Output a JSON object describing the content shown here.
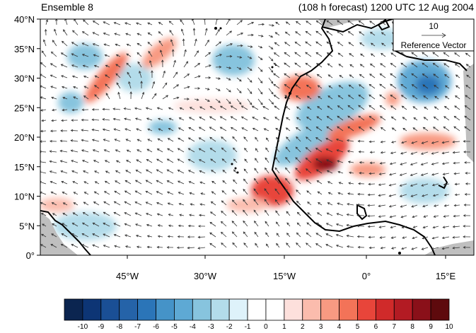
{
  "title_left": "Ensemble 8",
  "title_right": "(108 h forecast) 1200 UTC 12 Aug 2004",
  "reference_vector": {
    "magnitude": "10",
    "label": "Reference Vector"
  },
  "lat_labels": [
    "0°",
    "5°N",
    "10°N",
    "15°N",
    "20°N",
    "25°N",
    "30°N",
    "35°N",
    "40°N"
  ],
  "lon_labels": [
    "45°W",
    "30°W",
    "15°W",
    "0°",
    "15°E"
  ],
  "colorbar": {
    "labels": [
      "-10",
      "-9",
      "-8",
      "-7",
      "-6",
      "-5",
      "-4",
      "-3",
      "-2",
      "-1",
      "0",
      "1",
      "2",
      "3",
      "4",
      "5",
      "6",
      "7",
      "8",
      "9",
      "10"
    ],
    "colors": [
      "#0b2550",
      "#0d3575",
      "#1a4f95",
      "#2563a8",
      "#2b75b8",
      "#4593c8",
      "#5ea9d4",
      "#87c4de",
      "#b3dcea",
      "#def2fa",
      "#ffffff",
      "#ffffff",
      "#fde0dc",
      "#fbbcad",
      "#f89a82",
      "#f37358",
      "#e8453a",
      "#d02a2a",
      "#b31b23",
      "#8a1019",
      "#5e0a0d"
    ]
  },
  "colors": {
    "coastline": "#000000",
    "land_mask": "#bfbfbf",
    "arrow": "#333333"
  }
}
